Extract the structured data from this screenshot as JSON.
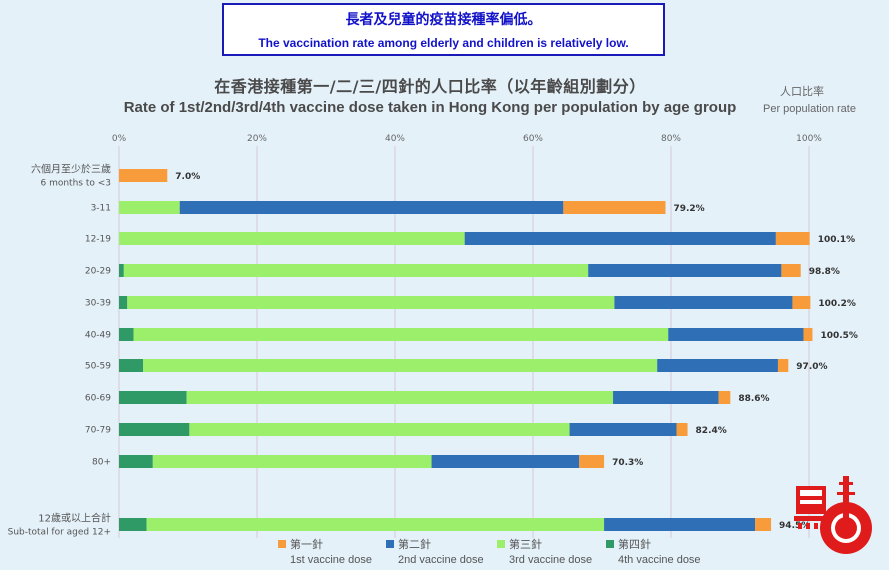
{
  "notice": {
    "zh": "長者及兒童的疫苗接種率偏低。",
    "en": "The vaccination rate among elderly and children is relatively low."
  },
  "header": {
    "title_zh": "在香港接種第一/二/三/四針的人口比率（以年齡組別劃分）",
    "title_en": "Rate of 1st/2nd/3rd/4th vaccine dose taken in Hong Kong per population by age group",
    "unit_zh": "人口比率",
    "unit_en": "Per population rate"
  },
  "colors": {
    "dose1": "#f89b3a",
    "dose2": "#2e6fb6",
    "dose3": "#9bef6a",
    "dose4": "#2f9a66",
    "grid": "#d9c6d6"
  },
  "chart_data": {
    "type": "bar",
    "orientation": "horizontal",
    "stacked": true,
    "xlim": [
      0,
      100
    ],
    "x_ticks": [
      "0%",
      "20%",
      "40%",
      "60%",
      "80%",
      "100%"
    ],
    "grid": true,
    "legend_position": "bottom",
    "categories": [
      {
        "label": "六個月至少於三歲",
        "label2": "6 months to <3"
      },
      {
        "label": "3-11"
      },
      {
        "label": "12-19"
      },
      {
        "label": "20-29"
      },
      {
        "label": "30-39"
      },
      {
        "label": "40-49"
      },
      {
        "label": "50-59"
      },
      {
        "label": "60-69"
      },
      {
        "label": "70-79"
      },
      {
        "label": "80+"
      },
      {
        "label": "12歲或以上合計",
        "label2": "Sub-total for aged 12+"
      }
    ],
    "series": [
      {
        "name": "第四針",
        "name_en": "4th vaccine dose",
        "color": "#2f9a66",
        "values": [
          0,
          0,
          0,
          0.7,
          1.2,
          2.1,
          3.5,
          9.8,
          10.2,
          4.9,
          4.0
        ]
      },
      {
        "name": "第三針",
        "name_en": "3rd vaccine dose",
        "color": "#9bef6a",
        "values": [
          0,
          8.8,
          50.1,
          67.3,
          70.6,
          77.5,
          74.5,
          61.8,
          55.1,
          40.4,
          66.3
        ]
      },
      {
        "name": "第二針",
        "name_en": "2nd vaccine dose",
        "color": "#2e6fb6",
        "values": [
          0,
          55.6,
          45.1,
          28.0,
          25.8,
          19.6,
          17.5,
          15.3,
          15.5,
          21.4,
          21.9
        ]
      },
      {
        "name": "第一針",
        "name_en": "1st vaccine dose",
        "color": "#f89b3a",
        "values": [
          7.0,
          14.8,
          4.9,
          2.8,
          2.6,
          1.3,
          1.5,
          1.7,
          1.6,
          3.6,
          2.3
        ]
      }
    ],
    "totals": [
      "7.0%",
      "79.2%",
      "100.1%",
      "98.8%",
      "100.2%",
      "100.5%",
      "97.0%",
      "88.6%",
      "82.4%",
      "70.3%",
      "94.5%"
    ]
  },
  "legend": [
    {
      "zh": "第一針",
      "en": "1st vaccine dose",
      "color": "#f89b3a"
    },
    {
      "zh": "第二針",
      "en": "2nd vaccine dose",
      "color": "#2e6fb6"
    },
    {
      "zh": "第三針",
      "en": "3rd vaccine dose",
      "color": "#9bef6a"
    },
    {
      "zh": "第四針",
      "en": "4th vaccine dose",
      "color": "#2f9a66"
    }
  ],
  "logo": {
    "icon": "red-tower-logo"
  }
}
